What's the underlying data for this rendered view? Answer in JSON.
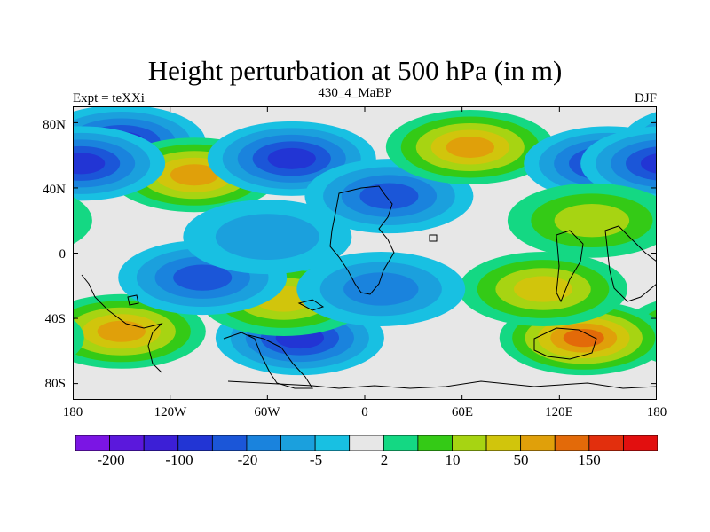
{
  "title": "Height perturbation at 500 hPa (in m)",
  "subtitle_left": "Expt = teXXi",
  "subtitle_center": "430_4_MaBP",
  "subtitle_right": "DJF",
  "y_ticks": [
    "80N",
    "40N",
    "0",
    "40S",
    "80S"
  ],
  "x_ticks": [
    "180",
    "120W",
    "60W",
    "0",
    "60E",
    "120E",
    "180"
  ],
  "colorbar": {
    "colors": [
      "#7b15e4",
      "#5b18dc",
      "#3c1fd6",
      "#2235d4",
      "#1b56d8",
      "#1a83dd",
      "#1ba0dd",
      "#18c0e2",
      "#e7e7e7",
      "#14d883",
      "#34ca16",
      "#a7d412",
      "#d1c50c",
      "#e0a00a",
      "#e36a09",
      "#e22f0d",
      "#e20f0f"
    ],
    "labels": [
      "-200",
      "-100",
      "-20",
      "-5",
      "2",
      "10",
      "50",
      "150"
    ]
  },
  "map_fields": [
    {
      "lon": -150,
      "lat": 68,
      "value": -60
    },
    {
      "lon": -105,
      "lat": 48,
      "value": 70
    },
    {
      "lon": -45,
      "lat": 58,
      "value": -80
    },
    {
      "lon": 15,
      "lat": 35,
      "value": -25
    },
    {
      "lon": 65,
      "lat": 65,
      "value": 75
    },
    {
      "lon": 150,
      "lat": 55,
      "value": -60
    },
    {
      "lon": -175,
      "lat": 55,
      "value": -60
    },
    {
      "lon": -150,
      "lat": -48,
      "value": 80
    },
    {
      "lon": -40,
      "lat": -52,
      "value": -90
    },
    {
      "lon": 135,
      "lat": -52,
      "value": 120
    },
    {
      "lon": -50,
      "lat": -28,
      "value": 30
    },
    {
      "lon": 110,
      "lat": -22,
      "value": 40
    },
    {
      "lon": -100,
      "lat": -15,
      "value": -20
    },
    {
      "lon": 10,
      "lat": -22,
      "value": -15
    },
    {
      "lon": -60,
      "lat": 10,
      "value": -8
    },
    {
      "lon": 140,
      "lat": 20,
      "value": 15
    }
  ]
}
